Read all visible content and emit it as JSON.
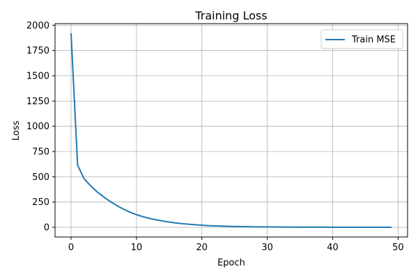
{
  "chart_data": {
    "type": "line",
    "title": "Training Loss",
    "xlabel": "Epoch",
    "ylabel": "Loss",
    "xlim": [
      -2.45,
      51.45
    ],
    "ylim": [
      -96,
      2016
    ],
    "xticks": [
      0,
      10,
      20,
      30,
      40,
      50
    ],
    "yticks": [
      0,
      250,
      500,
      750,
      1000,
      1250,
      1500,
      1750,
      2000
    ],
    "grid": true,
    "legend_position": "top-right",
    "series": [
      {
        "name": "Train MSE",
        "color": "#1f77b4",
        "x": [
          0,
          1,
          2,
          3,
          4,
          5,
          6,
          7,
          8,
          9,
          10,
          11,
          12,
          13,
          14,
          15,
          16,
          17,
          18,
          19,
          20,
          21,
          22,
          23,
          24,
          25,
          26,
          27,
          28,
          29,
          30,
          31,
          32,
          33,
          34,
          35,
          36,
          37,
          38,
          39,
          40,
          41,
          42,
          43,
          44,
          45,
          46,
          47,
          48,
          49
        ],
        "y": [
          1920,
          615,
          480,
          410,
          350,
          300,
          255,
          215,
          180,
          150,
          125,
          105,
          88,
          74,
          62,
          52,
          43,
          36,
          30,
          25,
          21,
          17,
          14,
          12,
          10,
          8,
          7,
          6,
          5,
          4,
          3.5,
          3,
          2.5,
          2,
          1.7,
          1.4,
          1.2,
          1.0,
          0.9,
          0.8,
          0.7,
          0.6,
          0.5,
          0.45,
          0.4,
          0.35,
          0.3,
          0.28,
          0.25,
          0.2
        ]
      }
    ]
  }
}
